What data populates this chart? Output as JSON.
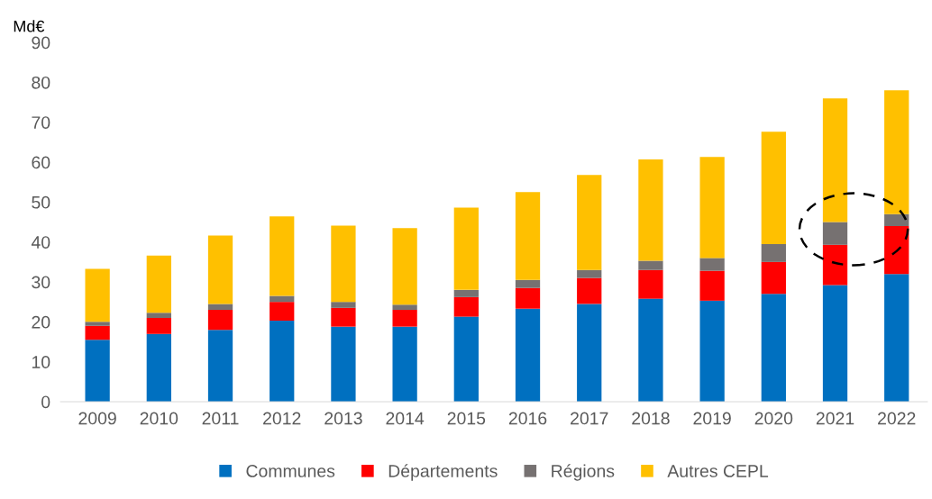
{
  "chart_data": {
    "type": "bar",
    "stacked": true,
    "ylabel": "Md€",
    "categories": [
      "2009",
      "2010",
      "2011",
      "2012",
      "2013",
      "2014",
      "2015",
      "2016",
      "2017",
      "2018",
      "2019",
      "2020",
      "2021",
      "2022"
    ],
    "series": [
      {
        "name": "Communes",
        "color": "#0070c0",
        "values": [
          15.5,
          17,
          18,
          20.3,
          18.8,
          18.8,
          21.3,
          23.3,
          24.5,
          25.8,
          25.3,
          27,
          29.2,
          32
        ]
      },
      {
        "name": "Départements",
        "color": "#ff0000",
        "values": [
          3.5,
          4,
          5,
          4.7,
          4.7,
          4.2,
          4.9,
          5.2,
          6.5,
          7.2,
          7.5,
          8,
          10.1,
          12
        ]
      },
      {
        "name": "Régions",
        "color": "#767171",
        "values": [
          1,
          1.3,
          1.5,
          1.5,
          1.5,
          1.3,
          1.8,
          2,
          2,
          2.3,
          3.2,
          4.5,
          5.7,
          3
        ]
      },
      {
        "name": "Autres CEPL",
        "color": "#ffc000",
        "values": [
          13.3,
          14.3,
          17.1,
          19.9,
          19.1,
          19.2,
          20.6,
          22,
          23.8,
          25.4,
          25.3,
          28.1,
          31,
          31
        ]
      }
    ],
    "ylim": [
      0,
      90
    ],
    "yticks": [
      0,
      10,
      20,
      30,
      40,
      50,
      60,
      70,
      80,
      90
    ],
    "grid": false,
    "legend": "bottom"
  }
}
